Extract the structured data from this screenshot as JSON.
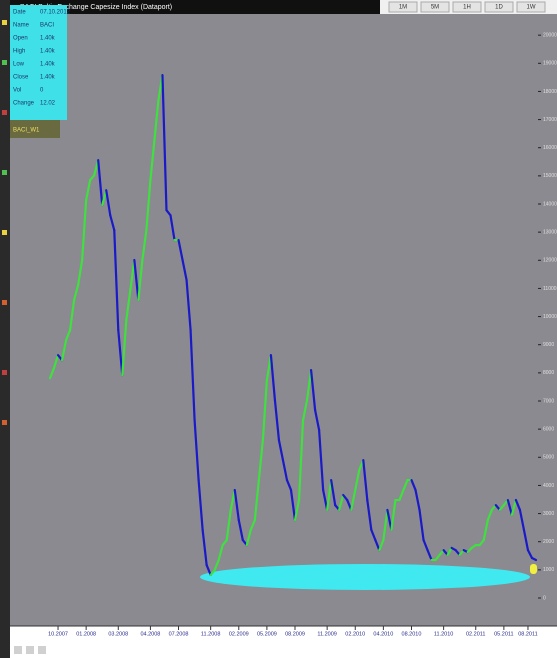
{
  "window_title": "BACI Baltic Exchange Capesize Index (Dataport)",
  "toolbar": [
    "1M",
    "5M",
    "1H",
    "1D",
    "1W"
  ],
  "info_panel": [
    [
      "Date",
      "07.10.2012"
    ],
    [
      "Name",
      "BACI"
    ],
    [
      "Open",
      "1.40k"
    ],
    [
      "High",
      "1.40k"
    ],
    [
      "Low",
      "1.40k"
    ],
    [
      "Close",
      "1.40k"
    ],
    [
      "Vol",
      "0"
    ],
    [
      "Change",
      "12.02"
    ]
  ],
  "indicator_label": "BACI_W1",
  "chart_data": {
    "type": "line",
    "categories": [
      null,
      null,
      "10.2007",
      null,
      null,
      null,
      null,
      null,
      null,
      "01.2008",
      null,
      null,
      null,
      null,
      null,
      null,
      null,
      "03.2008",
      null,
      null,
      null,
      null,
      null,
      null,
      null,
      "04.2008",
      null,
      null,
      null,
      null,
      null,
      null,
      "07.2008",
      null,
      null,
      null,
      null,
      null,
      null,
      null,
      "11.2008",
      null,
      null,
      null,
      null,
      null,
      null,
      "02.2009",
      null,
      null,
      null,
      null,
      null,
      null,
      "05.2009",
      null,
      null,
      null,
      null,
      null,
      null,
      "08.2009",
      null,
      null,
      null,
      null,
      null,
      null,
      null,
      "11.2009",
      null,
      null,
      null,
      null,
      null,
      null,
      "02.2010",
      null,
      null,
      null,
      null,
      null,
      null,
      "04.2010",
      null,
      null,
      null,
      null,
      null,
      null,
      "08.2010",
      null,
      null,
      null,
      null,
      null,
      null,
      null,
      "11.2010",
      null,
      null,
      null,
      null,
      null,
      null,
      null,
      "02.2011",
      null,
      null,
      null,
      null,
      null,
      null,
      "05.2011",
      null,
      null,
      null,
      null,
      null,
      "08.2011",
      null,
      null
    ],
    "series": [
      {
        "name": "BACI",
        "values": [
          7810,
          8170,
          8630,
          8450,
          9160,
          9520,
          10590,
          11120,
          12010,
          14140,
          14850,
          15020,
          15560,
          13960,
          14490,
          13600,
          13070,
          9520,
          7920,
          9870,
          10940,
          12010,
          10590,
          12010,
          13070,
          14850,
          16270,
          17690,
          18580,
          13780,
          13600,
          12720,
          12720,
          12010,
          11300,
          9520,
          6320,
          4190,
          2420,
          1170,
          820,
          990,
          1350,
          1880,
          2060,
          3130,
          3840,
          2770,
          2060,
          1880,
          2420,
          2770,
          4190,
          5610,
          7740,
          8630,
          7030,
          5610,
          4900,
          4190,
          3840,
          2770,
          3480,
          6320,
          7030,
          8100,
          6680,
          5970,
          3840,
          3130,
          4190,
          3300,
          3130,
          3660,
          3480,
          3130,
          3840,
          4550,
          4900,
          3480,
          2420,
          2060,
          1700,
          2060,
          3130,
          2420,
          3480,
          3480,
          3840,
          4190,
          4190,
          3840,
          3130,
          2060,
          1700,
          1350,
          1350,
          1530,
          1700,
          1530,
          1780,
          1700,
          1530,
          1700,
          1630,
          1780,
          1880,
          1880,
          2060,
          2770,
          3130,
          3300,
          3130,
          3300,
          3480,
          2950,
          3480,
          3130,
          2420,
          1700,
          1420,
          1350
        ]
      }
    ],
    "rising_color": "#3fe03f",
    "falling_color": "#1a1ac8",
    "ylim": [
      0,
      21000
    ],
    "yticks": [
      0,
      1000,
      2000,
      3000,
      4000,
      5000,
      6000,
      7000,
      8000,
      9000,
      10000,
      11000,
      12000,
      13000,
      14000,
      15000,
      16000,
      17000,
      18000,
      19000,
      20000
    ],
    "grid": false
  }
}
